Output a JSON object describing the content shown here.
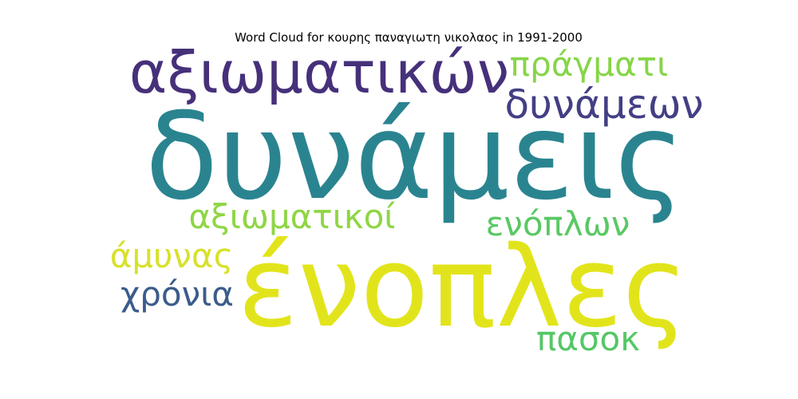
{
  "chart_data": {
    "type": "wordcloud",
    "title": "Word Cloud for κουρης παναγιωτη νικολαος in 1991-2000",
    "words": [
      {
        "text": "δυνάμεις",
        "rank": 1,
        "color": "#2a8490"
      },
      {
        "text": "ένοπλες",
        "rank": 2,
        "color": "#e2e41b"
      },
      {
        "text": "αξιωματικών",
        "rank": 3,
        "color": "#46307a"
      },
      {
        "text": "δυνάμεων",
        "rank": 4,
        "color": "#433f84"
      },
      {
        "text": "πράγματι",
        "rank": 5,
        "color": "#86d548"
      },
      {
        "text": "αξιωματικοί",
        "rank": 6,
        "color": "#8ed644"
      },
      {
        "text": "ενόπλων",
        "rank": 7,
        "color": "#5ac864"
      },
      {
        "text": "άμυνας",
        "rank": 8,
        "color": "#d8e12a"
      },
      {
        "text": "χρόνια",
        "rank": 9,
        "color": "#3b5c8b"
      },
      {
        "text": "πασοκ",
        "rank": 10,
        "color": "#55c766"
      }
    ]
  }
}
